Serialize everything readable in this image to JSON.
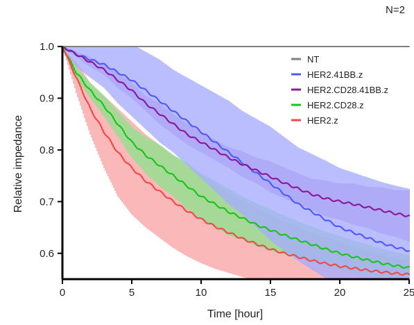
{
  "chart_data": {
    "type": "line",
    "annotation": "N=2",
    "xlabel": "Time [hour]",
    "ylabel": "Relative impedance",
    "xlim": [
      0,
      25
    ],
    "ylim": [
      0.55,
      1.0
    ],
    "x_ticks": [
      0,
      5,
      10,
      15,
      20,
      25
    ],
    "x_tick_labels": [
      "0",
      "5",
      "10",
      "15",
      "20",
      "25"
    ],
    "y_ticks": [
      0.6,
      0.7,
      0.8,
      0.9,
      1.0
    ],
    "y_tick_labels": [
      "0.6",
      "0.7",
      "0.8",
      "0.9",
      "1.0"
    ],
    "grid": false,
    "legend_position": "top-right",
    "error_bars": "vertical bars around each series",
    "series": [
      {
        "name": "NT",
        "color": "#808080",
        "x": [
          0,
          25
        ],
        "y": [
          1.0,
          1.0
        ],
        "error": [
          0.0,
          0.0
        ]
      },
      {
        "name": "HER2.41BB.z",
        "color": "#4f5bff",
        "x": [
          0,
          1,
          2,
          3,
          4,
          5,
          6,
          7,
          8,
          9,
          10,
          11,
          12,
          13,
          14,
          15,
          16,
          17,
          18,
          19,
          20,
          21,
          22,
          23,
          24,
          25
        ],
        "y": [
          1.0,
          0.985,
          0.975,
          0.965,
          0.95,
          0.935,
          0.915,
          0.895,
          0.875,
          0.855,
          0.835,
          0.815,
          0.795,
          0.775,
          0.755,
          0.735,
          0.715,
          0.695,
          0.68,
          0.665,
          0.65,
          0.64,
          0.63,
          0.62,
          0.612,
          0.605
        ],
        "error": [
          0.0,
          0.025,
          0.035,
          0.045,
          0.06,
          0.07,
          0.075,
          0.08,
          0.08,
          0.085,
          0.09,
          0.095,
          0.1,
          0.1,
          0.105,
          0.11,
          0.11,
          0.11,
          0.112,
          0.114,
          0.115,
          0.116,
          0.117,
          0.118,
          0.119,
          0.12
        ]
      },
      {
        "name": "HER2.CD28.41BB.z",
        "color": "#8b1a9e",
        "x": [
          0,
          1,
          2,
          3,
          4,
          5,
          6,
          7,
          8,
          9,
          10,
          11,
          12,
          13,
          14,
          15,
          16,
          17,
          18,
          19,
          20,
          21,
          22,
          23,
          24,
          25
        ],
        "y": [
          1.0,
          0.985,
          0.97,
          0.955,
          0.935,
          0.915,
          0.89,
          0.87,
          0.85,
          0.83,
          0.815,
          0.8,
          0.785,
          0.772,
          0.76,
          0.748,
          0.736,
          0.725,
          0.714,
          0.706,
          0.7,
          0.695,
          0.689,
          0.683,
          0.677,
          0.672
        ],
        "error": [
          0.0,
          0.005,
          0.01,
          0.01,
          0.015,
          0.015,
          0.015,
          0.02,
          0.02,
          0.02,
          0.02,
          0.02,
          0.02,
          0.025,
          0.025,
          0.03,
          0.03,
          0.03,
          0.03,
          0.035,
          0.035,
          0.04,
          0.04,
          0.045,
          0.045,
          0.05
        ]
      },
      {
        "name": "HER2.CD28.z",
        "color": "#1dc41d",
        "x": [
          0,
          1,
          2,
          3,
          4,
          5,
          6,
          7,
          8,
          9,
          10,
          11,
          12,
          13,
          14,
          15,
          16,
          17,
          18,
          19,
          20,
          21,
          22,
          23,
          24,
          25
        ],
        "y": [
          1.0,
          0.95,
          0.915,
          0.885,
          0.85,
          0.815,
          0.79,
          0.77,
          0.75,
          0.73,
          0.71,
          0.695,
          0.68,
          0.668,
          0.655,
          0.645,
          0.635,
          0.626,
          0.617,
          0.608,
          0.6,
          0.593,
          0.587,
          0.581,
          0.576,
          0.572
        ],
        "error": [
          0.0,
          0.01,
          0.015,
          0.02,
          0.025,
          0.03,
          0.035,
          0.04,
          0.04,
          0.045,
          0.045,
          0.045,
          0.045,
          0.042,
          0.042,
          0.04,
          0.038,
          0.036,
          0.035,
          0.034,
          0.033,
          0.032,
          0.03,
          0.028,
          0.026,
          0.025
        ]
      },
      {
        "name": "HER2.z",
        "color": "#f44949",
        "x": [
          0,
          1,
          2,
          3,
          4,
          5,
          6,
          7,
          8,
          9,
          10,
          11,
          12,
          13,
          14,
          15,
          16,
          17,
          18,
          19,
          20,
          21,
          22,
          23,
          24,
          25
        ],
        "y": [
          1.0,
          0.94,
          0.88,
          0.835,
          0.795,
          0.765,
          0.74,
          0.72,
          0.7,
          0.682,
          0.666,
          0.652,
          0.64,
          0.628,
          0.618,
          0.608,
          0.6,
          0.593,
          0.586,
          0.58,
          0.575,
          0.571,
          0.567,
          0.564,
          0.561,
          0.559
        ],
        "error": [
          0.0,
          0.03,
          0.05,
          0.07,
          0.085,
          0.09,
          0.09,
          0.09,
          0.09,
          0.088,
          0.085,
          0.082,
          0.078,
          0.074,
          0.07,
          0.066,
          0.062,
          0.058,
          0.054,
          0.05,
          0.046,
          0.042,
          0.038,
          0.034,
          0.03,
          0.028
        ]
      }
    ]
  }
}
